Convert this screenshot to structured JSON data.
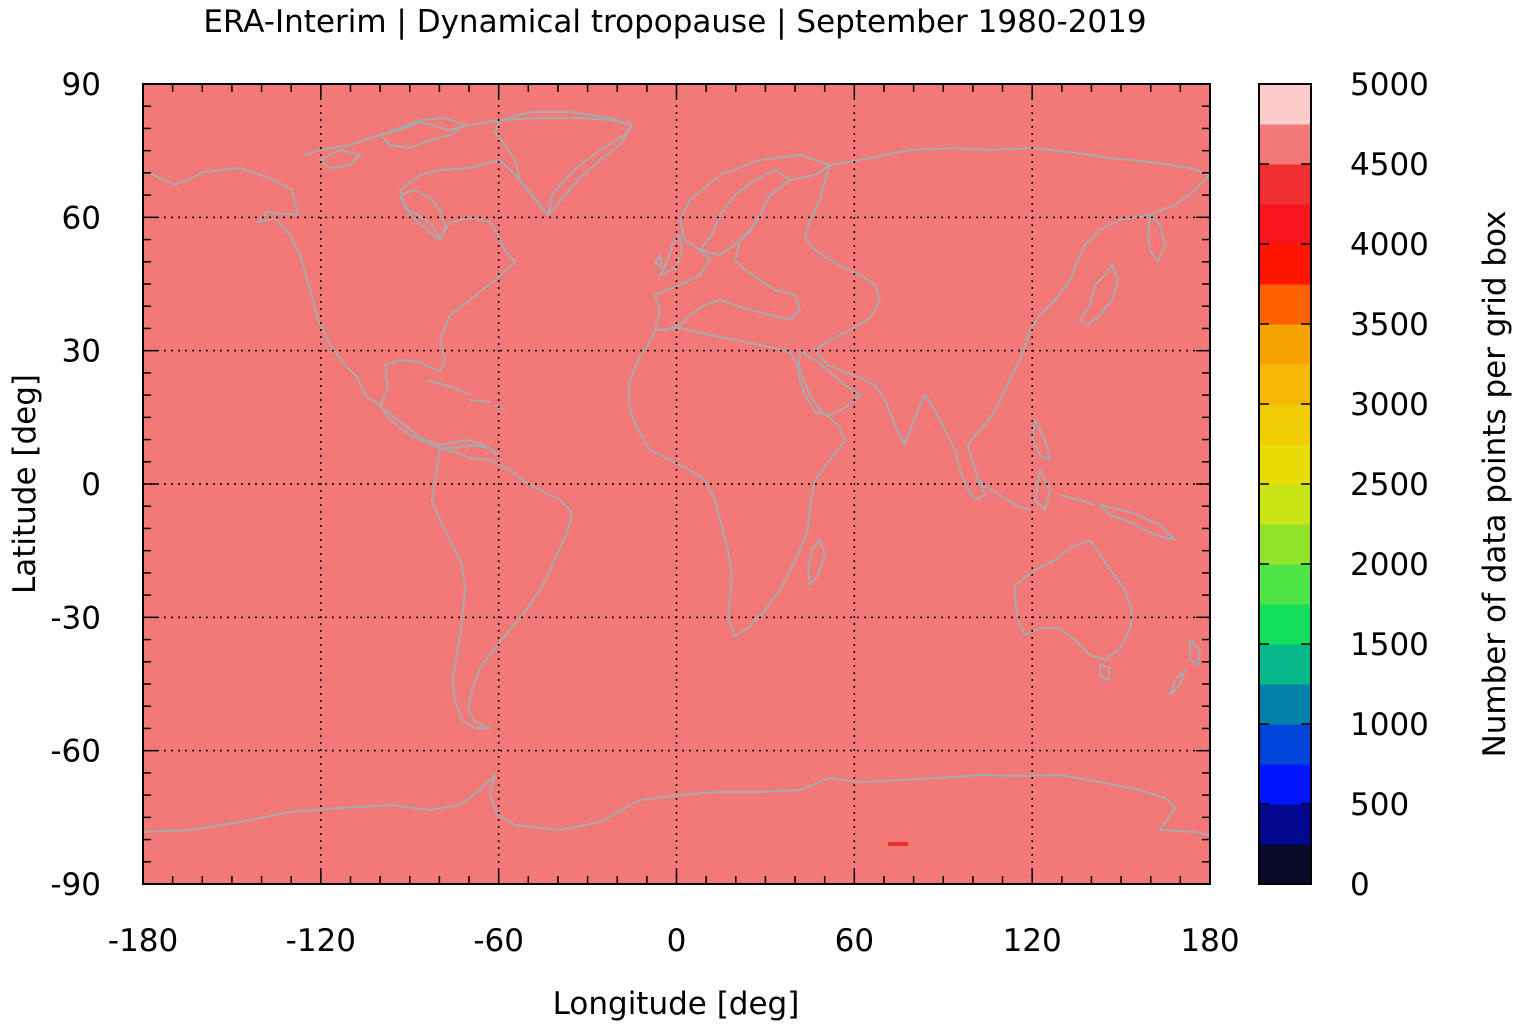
{
  "chart_data": {
    "type": "heatmap",
    "title": "ERA-Interim | Dynamical tropopause | September 1980-2019",
    "xlabel": "Longitude [deg]",
    "ylabel": "Latitude [deg]",
    "xlim": [
      -180,
      180
    ],
    "ylim": [
      -90,
      90
    ],
    "x_ticks": [
      "-180",
      "-120",
      "-60",
      "0",
      "60",
      "120",
      "180"
    ],
    "y_ticks": [
      "90",
      "60",
      "30",
      "0",
      "-30",
      "-60",
      "-90"
    ],
    "grid": true,
    "background_value_range": [
      4500,
      4750
    ],
    "coastline_color": "#a9a9a9",
    "colorbar": {
      "label": "Number of data points per grid box",
      "range": [
        0,
        5000
      ],
      "tick_labels": [
        "5000",
        "4500",
        "4000",
        "3500",
        "3000",
        "2500",
        "2000",
        "1500",
        "1000",
        "500",
        "0"
      ],
      "colors": [
        "#0a0a2a",
        "#04088f",
        "#0015ff",
        "#0044d8",
        "#0280a8",
        "#08b78a",
        "#14df5a",
        "#50e546",
        "#90e328",
        "#c8e414",
        "#e7dc06",
        "#f0cc04",
        "#f6b805",
        "#f6a300",
        "#fd6200",
        "#ff1500",
        "#f8151c",
        "#f02f30",
        "#f37979",
        "#ffcccc"
      ]
    },
    "anomalies": [
      {
        "lon_range": [
          60,
          75
        ],
        "lat": -81,
        "value_range": [
          4250,
          4500
        ]
      }
    ]
  }
}
